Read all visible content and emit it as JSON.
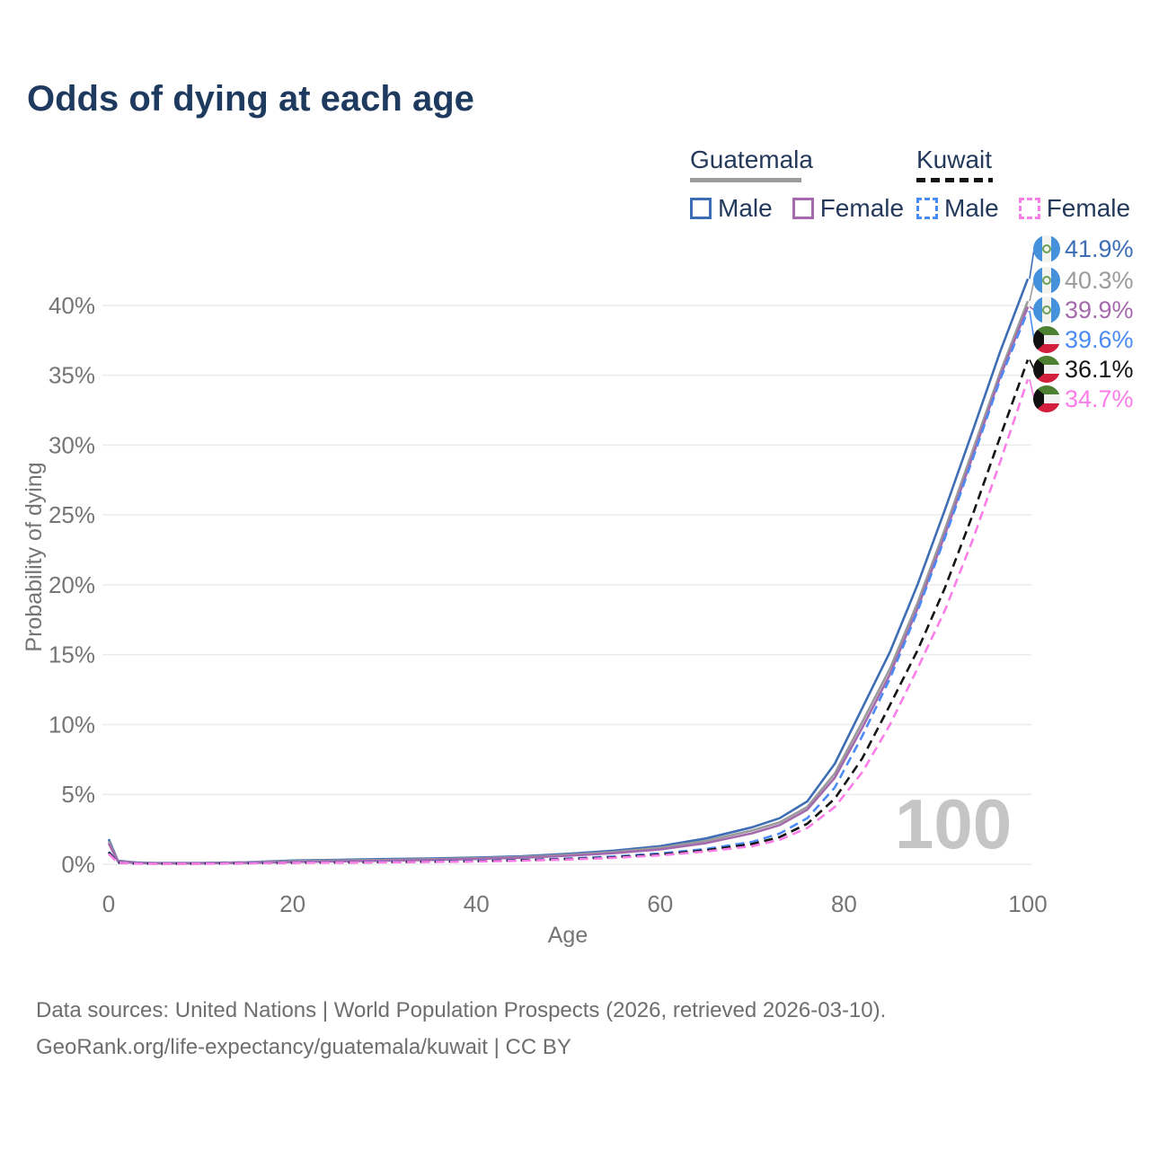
{
  "title": "Odds of dying at each age",
  "legend": {
    "guatemala": {
      "name": "Guatemala",
      "male": "Male",
      "female": "Female"
    },
    "kuwait": {
      "name": "Kuwait",
      "male": "Male",
      "female": "Female"
    }
  },
  "footer": {
    "line1": "Data sources: United Nations | World Population Prospects (2026, retrieved 2026-03-10).",
    "line2": "GeoRank.org/life-expectancy/guatemala/kuwait | CC BY"
  },
  "palette": {
    "title_color": "#1e3a5f",
    "legend_text_color": "#24395b",
    "axis_text_color": "#757575",
    "gridline_color": "#ebebeb",
    "watermark_color": "#c5c5c5",
    "guatemala_flag_blue": "#4691dc",
    "guatemala_flag_white": "#f4f4ef",
    "guatemala_emblem_green": "#69a055",
    "kuwait_flag_green": "#4d8030",
    "kuwait_flag_white": "#f2f2f2",
    "kuwait_flag_red": "#d41f3c",
    "kuwait_flag_black": "#111111"
  },
  "chart_data": {
    "type": "line",
    "title": "Odds of dying at each age",
    "xlabel": "Age",
    "ylabel": "Probability of dying",
    "xlim": [
      0,
      100
    ],
    "ylim_pct": [
      0,
      44
    ],
    "xticks": [
      0,
      20,
      40,
      60,
      80,
      100
    ],
    "yticks_pct": [
      0,
      5,
      10,
      15,
      20,
      25,
      30,
      35,
      40
    ],
    "grid": "horizontal",
    "legend_position": "top-right",
    "watermark": "100",
    "series": [
      {
        "id": "gt-male",
        "country": "Guatemala",
        "sex": "Male",
        "flag": "guatemala",
        "color": "#3d6eb5",
        "dashed": false,
        "end_label": "41.9%",
        "end_value_pct": 41.9,
        "points": [
          [
            0,
            1.8
          ],
          [
            1,
            0.25
          ],
          [
            3,
            0.12
          ],
          [
            5,
            0.09
          ],
          [
            10,
            0.09
          ],
          [
            15,
            0.14
          ],
          [
            20,
            0.27
          ],
          [
            25,
            0.32
          ],
          [
            30,
            0.37
          ],
          [
            35,
            0.42
          ],
          [
            40,
            0.48
          ],
          [
            45,
            0.58
          ],
          [
            50,
            0.75
          ],
          [
            55,
            0.98
          ],
          [
            60,
            1.3
          ],
          [
            65,
            1.85
          ],
          [
            70,
            2.65
          ],
          [
            73,
            3.3
          ],
          [
            76,
            4.5
          ],
          [
            79,
            7.2
          ],
          [
            82,
            11.2
          ],
          [
            85,
            15.2
          ],
          [
            88,
            20.0
          ],
          [
            91,
            25.4
          ],
          [
            94,
            31.0
          ],
          [
            97,
            36.7
          ],
          [
            100,
            41.9
          ]
        ]
      },
      {
        "id": "gt-all",
        "country": "Guatemala",
        "sex": "Both",
        "flag": "guatemala",
        "color": "#9b9b9b",
        "dashed": false,
        "end_label": "40.3%",
        "end_value_pct": 40.3,
        "points": [
          [
            0,
            1.65
          ],
          [
            1,
            0.22
          ],
          [
            3,
            0.1
          ],
          [
            5,
            0.08
          ],
          [
            10,
            0.08
          ],
          [
            15,
            0.12
          ],
          [
            20,
            0.22
          ],
          [
            25,
            0.27
          ],
          [
            30,
            0.31
          ],
          [
            35,
            0.36
          ],
          [
            40,
            0.43
          ],
          [
            45,
            0.52
          ],
          [
            50,
            0.68
          ],
          [
            55,
            0.88
          ],
          [
            60,
            1.18
          ],
          [
            65,
            1.68
          ],
          [
            70,
            2.42
          ],
          [
            73,
            3.0
          ],
          [
            76,
            4.1
          ],
          [
            79,
            6.5
          ],
          [
            82,
            10.2
          ],
          [
            85,
            14.0
          ],
          [
            88,
            18.7
          ],
          [
            91,
            24.0
          ],
          [
            94,
            29.6
          ],
          [
            97,
            35.2
          ],
          [
            100,
            40.3
          ]
        ]
      },
      {
        "id": "gt-female",
        "country": "Guatemala",
        "sex": "Female",
        "flag": "guatemala",
        "color": "#a569ad",
        "dashed": false,
        "end_label": "39.9%",
        "end_value_pct": 39.9,
        "points": [
          [
            0,
            1.5
          ],
          [
            1,
            0.2
          ],
          [
            3,
            0.09
          ],
          [
            5,
            0.07
          ],
          [
            10,
            0.07
          ],
          [
            15,
            0.1
          ],
          [
            20,
            0.17
          ],
          [
            25,
            0.21
          ],
          [
            30,
            0.26
          ],
          [
            35,
            0.31
          ],
          [
            40,
            0.38
          ],
          [
            45,
            0.47
          ],
          [
            50,
            0.61
          ],
          [
            55,
            0.8
          ],
          [
            60,
            1.07
          ],
          [
            65,
            1.52
          ],
          [
            70,
            2.22
          ],
          [
            73,
            2.8
          ],
          [
            76,
            3.9
          ],
          [
            79,
            6.2
          ],
          [
            82,
            9.8
          ],
          [
            85,
            13.6
          ],
          [
            88,
            18.3
          ],
          [
            91,
            23.6
          ],
          [
            94,
            29.2
          ],
          [
            97,
            34.9
          ],
          [
            100,
            39.9
          ]
        ]
      },
      {
        "id": "kw-male",
        "country": "Kuwait",
        "sex": "Male",
        "flag": "kuwait",
        "color": "#4c8bf5",
        "dashed": true,
        "end_label": "39.6%",
        "end_value_pct": 39.6,
        "points": [
          [
            0,
            0.9
          ],
          [
            1,
            0.12
          ],
          [
            3,
            0.06
          ],
          [
            5,
            0.05
          ],
          [
            10,
            0.05
          ],
          [
            15,
            0.09
          ],
          [
            20,
            0.13
          ],
          [
            25,
            0.15
          ],
          [
            30,
            0.17
          ],
          [
            35,
            0.2
          ],
          [
            40,
            0.25
          ],
          [
            45,
            0.31
          ],
          [
            50,
            0.41
          ],
          [
            55,
            0.56
          ],
          [
            60,
            0.78
          ],
          [
            65,
            1.1
          ],
          [
            70,
            1.6
          ],
          [
            73,
            2.2
          ],
          [
            76,
            3.3
          ],
          [
            79,
            5.5
          ],
          [
            82,
            9.2
          ],
          [
            85,
            13.3
          ],
          [
            88,
            18.1
          ],
          [
            91,
            23.4
          ],
          [
            94,
            29.0
          ],
          [
            97,
            34.7
          ],
          [
            100,
            39.6
          ]
        ]
      },
      {
        "id": "kw-all",
        "country": "Kuwait",
        "sex": "Both",
        "flag": "kuwait",
        "color": "#141414",
        "dashed": true,
        "end_label": "36.1%",
        "end_value_pct": 36.1,
        "points": [
          [
            0,
            0.85
          ],
          [
            1,
            0.11
          ],
          [
            3,
            0.05
          ],
          [
            5,
            0.045
          ],
          [
            10,
            0.045
          ],
          [
            15,
            0.08
          ],
          [
            20,
            0.11
          ],
          [
            25,
            0.13
          ],
          [
            30,
            0.15
          ],
          [
            35,
            0.18
          ],
          [
            40,
            0.22
          ],
          [
            45,
            0.28
          ],
          [
            50,
            0.37
          ],
          [
            55,
            0.5
          ],
          [
            60,
            0.7
          ],
          [
            65,
            1.0
          ],
          [
            70,
            1.45
          ],
          [
            73,
            1.95
          ],
          [
            76,
            2.9
          ],
          [
            79,
            4.7
          ],
          [
            82,
            7.6
          ],
          [
            85,
            11.4
          ],
          [
            88,
            15.3
          ],
          [
            91,
            19.8
          ],
          [
            94,
            25.0
          ],
          [
            97,
            30.6
          ],
          [
            100,
            36.1
          ]
        ]
      },
      {
        "id": "kw-female",
        "country": "Kuwait",
        "sex": "Female",
        "flag": "kuwait",
        "color": "#fb7de8",
        "dashed": true,
        "end_label": "34.7%",
        "end_value_pct": 34.7,
        "points": [
          [
            0,
            0.75
          ],
          [
            1,
            0.1
          ],
          [
            3,
            0.05
          ],
          [
            5,
            0.04
          ],
          [
            10,
            0.04
          ],
          [
            15,
            0.07
          ],
          [
            20,
            0.1
          ],
          [
            25,
            0.12
          ],
          [
            30,
            0.14
          ],
          [
            35,
            0.17
          ],
          [
            40,
            0.2
          ],
          [
            45,
            0.26
          ],
          [
            50,
            0.34
          ],
          [
            55,
            0.46
          ],
          [
            60,
            0.64
          ],
          [
            65,
            0.92
          ],
          [
            70,
            1.3
          ],
          [
            73,
            1.75
          ],
          [
            76,
            2.6
          ],
          [
            79,
            4.1
          ],
          [
            82,
            6.6
          ],
          [
            85,
            10.0
          ],
          [
            88,
            14.0
          ],
          [
            91,
            18.2
          ],
          [
            94,
            23.2
          ],
          [
            97,
            28.8
          ],
          [
            100,
            34.7
          ]
        ]
      }
    ]
  }
}
